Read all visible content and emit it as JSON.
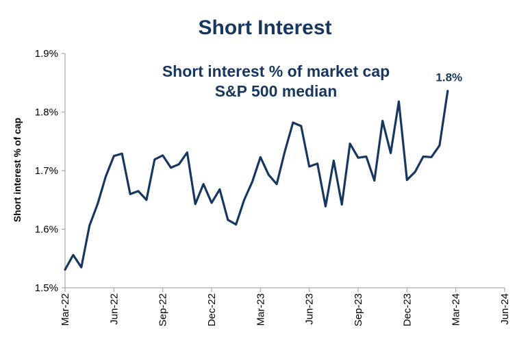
{
  "chart_data": {
    "type": "line",
    "title": "Short Interest",
    "annotation_lines": [
      "Short interest % of market cap",
      "S&P 500 median"
    ],
    "ylabel": "Short interest % of cap",
    "xlabel": "",
    "x_tick_labels": [
      "Mar-22",
      "Jun-22",
      "Sep-22",
      "Dec-22",
      "Mar-23",
      "Jun-23",
      "Sep-23",
      "Dec-23",
      "Mar-24",
      "Jun-24"
    ],
    "y_tick_labels": [
      "1.5%",
      "1.6%",
      "1.7%",
      "1.8%",
      "1.9%"
    ],
    "ylim": [
      1.5,
      1.9
    ],
    "xlim": [
      0,
      27
    ],
    "grid": false,
    "series": [
      {
        "color": "#17375e",
        "x": [
          0,
          0.5,
          1,
          1.5,
          2,
          2.5,
          3,
          3.5,
          4,
          4.5,
          5,
          5.5,
          6,
          6.5,
          7,
          7.5,
          8,
          8.5,
          9,
          9.5,
          10,
          10.5,
          11,
          11.5,
          12,
          12.5,
          13,
          13.5,
          14,
          14.5,
          15,
          15.5,
          16,
          16.5,
          17,
          17.5,
          18,
          18.5,
          19,
          19.5,
          20,
          20.5,
          21,
          21.5,
          22,
          22.5,
          23,
          23.5,
          24,
          24.5,
          25,
          25.5,
          26,
          26.5,
          27
        ],
        "values": [
          1.531,
          1.556,
          1.535,
          1.606,
          1.643,
          1.69,
          1.725,
          1.729,
          1.66,
          1.665,
          1.65,
          1.719,
          1.726,
          1.705,
          1.711,
          1.731,
          1.643,
          1.677,
          1.645,
          1.668,
          1.616,
          1.608,
          1.65,
          1.681,
          1.723,
          1.693,
          1.677,
          1.733,
          1.782,
          1.776,
          1.707,
          1.712,
          1.639,
          1.717,
          1.642,
          1.746,
          1.722,
          1.724,
          1.683,
          1.785,
          1.73,
          1.818,
          1.684,
          1.698,
          1.724,
          1.723,
          1.743,
          1.836,
          1.836,
          1.836,
          1.836,
          1.836,
          1.836,
          1.836,
          1.836
        ]
      }
    ],
    "end_label": "1.8%",
    "axis_color": "#a6a6a6"
  }
}
